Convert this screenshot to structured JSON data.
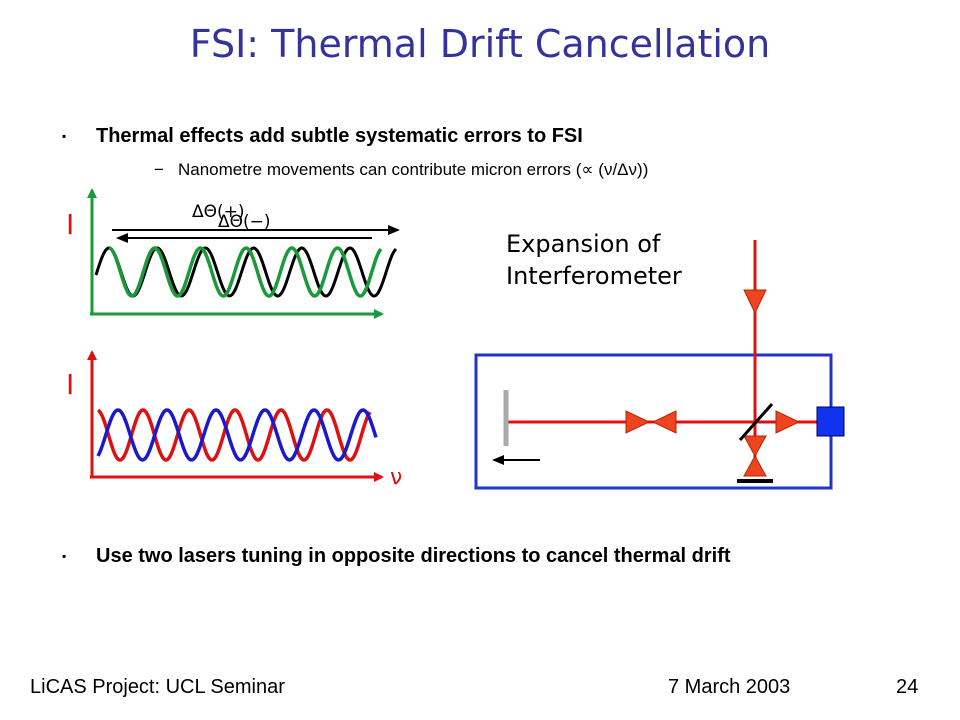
{
  "slide": {
    "title": "FSI: Thermal Drift Cancellation",
    "bullet1": "Thermal effects add subtle systematic errors to FSI",
    "sub1": "Nanometre movements can contribute micron errors (∝  (ν/Δν))",
    "bullet2": "Use two lasers tuning in opposite directions to cancel thermal drift",
    "bullet_mark": "▪",
    "sub_mark": "−"
  },
  "diagram": {
    "plot1_ylabel": "I",
    "plot1_annotation_top": "ΔΘ(+)",
    "plot1_annotation_bottom": "ΔΘ(−)",
    "plot2_ylabel": "I",
    "plot2_xlabel": "ν",
    "expansion_label_line1": "Expansion of",
    "expansion_label_line2": "Interferometer",
    "colors": {
      "green": "#1a9a3a",
      "black": "#000000",
      "red": "#dd1111",
      "blue": "#1a1acc",
      "box": "#2233cc",
      "mirror": "#aaaaaa"
    }
  },
  "footer": {
    "left": "LiCAS Project: UCL Seminar",
    "date": "7 March 2003",
    "page": "24"
  }
}
